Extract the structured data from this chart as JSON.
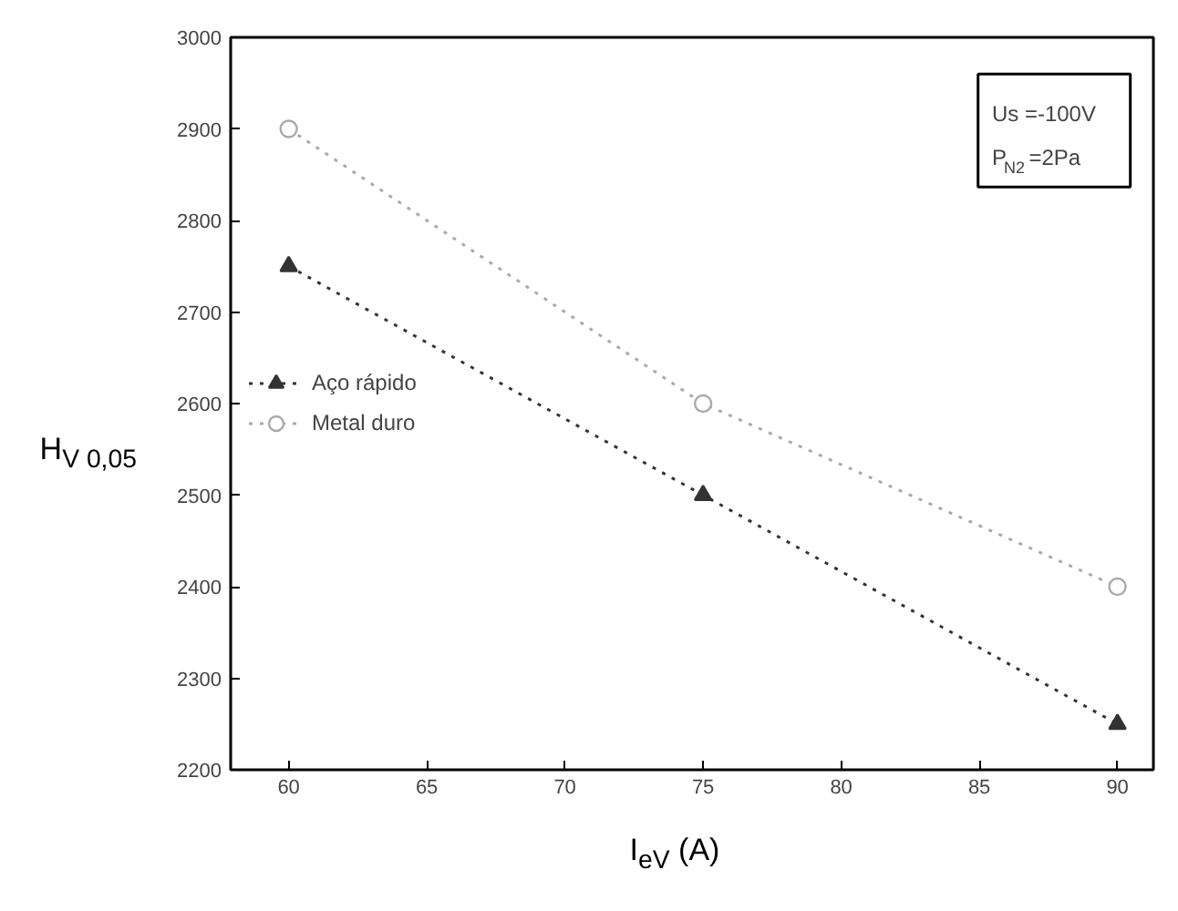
{
  "chart_data": {
    "type": "line",
    "xlabel": "I$_{eV}$ (A)",
    "ylabel": "H$_{V 0,05}$",
    "x": [
      60,
      75,
      90
    ],
    "series": [
      {
        "name": "Aço rápido",
        "color": "#333333",
        "values": [
          2750,
          2500,
          2250
        ],
        "marker": "triangle"
      },
      {
        "name": "Metal duro",
        "color": "#aaaaaa",
        "values": [
          2900,
          2600,
          2400
        ],
        "marker": "circle"
      }
    ],
    "xlim": [
      57.9,
      91.3
    ],
    "ylim": [
      2200,
      3000
    ],
    "xticks": [
      60,
      65,
      70,
      75,
      80,
      85,
      90
    ],
    "yticks": [
      2200,
      2300,
      2400,
      2500,
      2600,
      2700,
      2800,
      2900,
      3000
    ],
    "annotations": [
      "Us =-100V",
      "P$_{N2}$ =2Pa"
    ],
    "grid": false,
    "legend": "center left",
    "line_style": "dotted"
  }
}
